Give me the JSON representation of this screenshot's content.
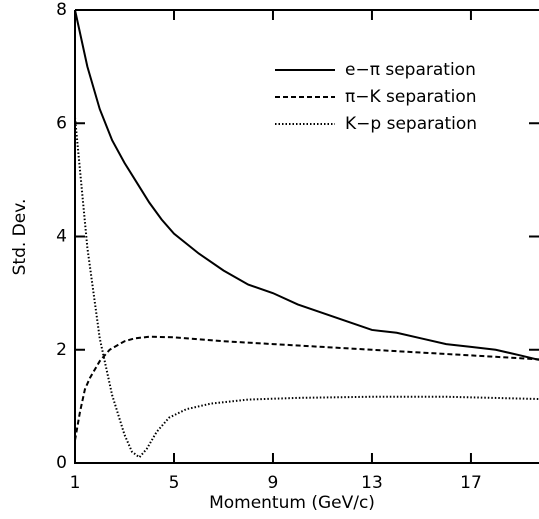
{
  "chart_data": {
    "type": "line",
    "xlabel": "Momentum (GeV/c)",
    "ylabel": "Std. Dev.",
    "xlim": [
      1,
      19.75
    ],
    "ylim": [
      0,
      8
    ],
    "xticks": [
      1,
      5,
      9,
      13,
      17
    ],
    "yticks": [
      0,
      2,
      4,
      6,
      8
    ],
    "legend": "upper right",
    "series": [
      {
        "name": "e−π separation",
        "color": "#000",
        "style": "solid",
        "x": [
          1,
          1.5,
          2,
          2.5,
          3,
          3.5,
          4,
          4.5,
          5,
          6,
          7,
          8,
          9,
          10,
          11,
          12,
          13,
          14,
          15,
          16,
          17,
          18,
          19,
          19.75
        ],
        "values": [
          8,
          7.0,
          6.25,
          5.7,
          5.3,
          4.95,
          4.6,
          4.3,
          4.05,
          3.7,
          3.4,
          3.15,
          3.0,
          2.8,
          2.65,
          2.5,
          2.35,
          2.3,
          2.2,
          2.1,
          2.05,
          2.0,
          1.9,
          1.82
        ]
      },
      {
        "name": "π−K separation",
        "color": "#000",
        "style": "dashed",
        "x": [
          1,
          1.2,
          1.4,
          1.6,
          2,
          2.4,
          3,
          3.4,
          4,
          5,
          7,
          9,
          11,
          13,
          15,
          17,
          19,
          19.75
        ],
        "values": [
          0.4,
          0.9,
          1.3,
          1.5,
          1.8,
          2.0,
          2.15,
          2.2,
          2.23,
          2.22,
          2.15,
          2.1,
          2.05,
          2.0,
          1.95,
          1.9,
          1.85,
          1.83
        ]
      },
      {
        "name": "K−p separation",
        "color": "#000",
        "style": "dotted",
        "x": [
          1,
          1.5,
          2,
          2.5,
          3,
          3.3,
          3.6,
          3.9,
          4.3,
          4.8,
          5.5,
          6.5,
          8,
          10,
          13,
          16,
          19.75
        ],
        "values": [
          6.1,
          3.8,
          2.2,
          1.2,
          0.5,
          0.2,
          0.1,
          0.25,
          0.55,
          0.8,
          0.95,
          1.05,
          1.12,
          1.15,
          1.17,
          1.17,
          1.13
        ]
      }
    ]
  }
}
